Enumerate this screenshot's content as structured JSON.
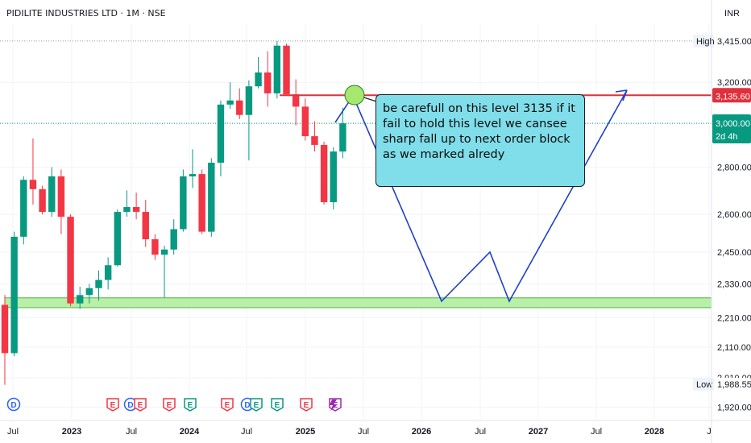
{
  "header": {
    "symbol_title": "PIDILITE INDUSTRIES LTD · 1M · NSE",
    "currency": "INR"
  },
  "annotation": {
    "callout_text": "be carefull on this level 3135 if it fail to hold this level we cansee sharp fall up to next order block as we marked alredy"
  },
  "price_tags": {
    "high_label": "High",
    "high_value": "3,415.00",
    "low_label": "Low",
    "low_value": "1,988.55",
    "level_value": "3,135.60",
    "last_price": "3,000.00",
    "countdown": "2d 4h"
  },
  "events": [
    {
      "x_label_index": 0,
      "letter": "D",
      "kind": "dividend"
    },
    {
      "x_label_index": 2,
      "letter": "E",
      "kind": "earnings"
    },
    {
      "x_label_index": 2,
      "letter": "D",
      "kind": "dividend"
    },
    {
      "x_label_index": 2,
      "letter": "E",
      "kind": "earnings"
    },
    {
      "x_label_index": 2,
      "letter": "E",
      "kind": "earnings"
    },
    {
      "x_label_index": 2,
      "letter": "E",
      "kind": "earnings-green"
    },
    {
      "x_label_index": 4,
      "letter": "E",
      "kind": "earnings"
    },
    {
      "x_label_index": 4,
      "letter": "D",
      "kind": "dividend"
    },
    {
      "x_label_index": 4,
      "letter": "E",
      "kind": "earnings-green"
    },
    {
      "x_label_index": 4,
      "letter": "E",
      "kind": "earnings-green"
    },
    {
      "x_label_index": 6,
      "letter": "E",
      "kind": "earnings"
    },
    {
      "x_label_index": 6,
      "letter": "E",
      "kind": "earnings-purple"
    }
  ],
  "colors": {
    "up": "#089981",
    "down": "#f23645",
    "level_line": "#e0303d",
    "zone_fill": "#b7f0a6",
    "projection": "#1e40c8",
    "grid": "#f0f3fa",
    "dotted": "#9598a1",
    "circle_fill": "#a5e86f"
  },
  "chart_data": {
    "type": "candlestick",
    "interval": "1M",
    "y_scale": "log",
    "ylim": [
      1880,
      3520
    ],
    "y_ticks": [
      3200,
      3000,
      2800,
      2600,
      2450,
      2330,
      2210,
      2110,
      2010,
      1920
    ],
    "y_tick_labels": [
      "3,200.00",
      "3,000.00",
      "2,800.00",
      "2,600.00",
      "2,450.00",
      "2,330.00",
      "2,210.00",
      "2,110.00",
      "2,010.00",
      "1,920.00"
    ],
    "x_tick_labels": [
      "Jul",
      "2023",
      "Jul",
      "2024",
      "Jul",
      "2025",
      "Jul",
      "2026",
      "Jul",
      "2027",
      "Jul",
      "2028",
      "J"
    ],
    "candles": [
      {
        "date": "2022-06",
        "open": 2255,
        "high": 2290,
        "low": 1988.55,
        "close": 2090
      },
      {
        "date": "2022-07",
        "open": 2090,
        "high": 2530,
        "low": 2080,
        "close": 2510
      },
      {
        "date": "2022-08",
        "open": 2510,
        "high": 2760,
        "low": 2480,
        "close": 2745
      },
      {
        "date": "2022-09",
        "open": 2745,
        "high": 2930,
        "low": 2640,
        "close": 2705
      },
      {
        "date": "2022-10",
        "open": 2705,
        "high": 2720,
        "low": 2600,
        "close": 2610
      },
      {
        "date": "2022-11",
        "open": 2610,
        "high": 2800,
        "low": 2590,
        "close": 2760
      },
      {
        "date": "2022-12",
        "open": 2760,
        "high": 2790,
        "low": 2520,
        "close": 2590
      },
      {
        "date": "2023-01",
        "open": 2590,
        "high": 2600,
        "low": 2250,
        "close": 2260
      },
      {
        "date": "2023-02",
        "open": 2260,
        "high": 2320,
        "low": 2240,
        "close": 2290
      },
      {
        "date": "2023-03",
        "open": 2290,
        "high": 2330,
        "low": 2260,
        "close": 2315
      },
      {
        "date": "2023-04",
        "open": 2315,
        "high": 2380,
        "low": 2270,
        "close": 2345
      },
      {
        "date": "2023-05",
        "open": 2345,
        "high": 2430,
        "low": 2310,
        "close": 2400
      },
      {
        "date": "2023-06",
        "open": 2400,
        "high": 2620,
        "low": 2395,
        "close": 2610
      },
      {
        "date": "2023-07",
        "open": 2610,
        "high": 2700,
        "low": 2590,
        "close": 2630
      },
      {
        "date": "2023-08",
        "open": 2630,
        "high": 2690,
        "low": 2580,
        "close": 2610
      },
      {
        "date": "2023-09",
        "open": 2610,
        "high": 2660,
        "low": 2470,
        "close": 2500
      },
      {
        "date": "2023-10",
        "open": 2500,
        "high": 2520,
        "low": 2420,
        "close": 2440
      },
      {
        "date": "2023-11",
        "open": 2440,
        "high": 2475,
        "low": 2280,
        "close": 2460
      },
      {
        "date": "2023-12",
        "open": 2460,
        "high": 2580,
        "low": 2440,
        "close": 2540
      },
      {
        "date": "2024-01",
        "open": 2540,
        "high": 2790,
        "low": 2530,
        "close": 2760
      },
      {
        "date": "2024-02",
        "open": 2760,
        "high": 2880,
        "low": 2710,
        "close": 2770
      },
      {
        "date": "2024-03",
        "open": 2770,
        "high": 2790,
        "low": 2520,
        "close": 2530
      },
      {
        "date": "2024-04",
        "open": 2530,
        "high": 2840,
        "low": 2510,
        "close": 2820
      },
      {
        "date": "2024-05",
        "open": 2820,
        "high": 3110,
        "low": 2760,
        "close": 3090
      },
      {
        "date": "2024-06",
        "open": 3090,
        "high": 3200,
        "low": 3070,
        "close": 3110
      },
      {
        "date": "2024-07",
        "open": 3110,
        "high": 3170,
        "low": 3020,
        "close": 3040
      },
      {
        "date": "2024-08",
        "open": 3040,
        "high": 3210,
        "low": 2830,
        "close": 3180
      },
      {
        "date": "2024-09",
        "open": 3180,
        "high": 3330,
        "low": 3170,
        "close": 3250
      },
      {
        "date": "2024-10",
        "open": 3250,
        "high": 3360,
        "low": 3080,
        "close": 3145
      },
      {
        "date": "2024-11",
        "open": 3145,
        "high": 3415,
        "low": 3120,
        "close": 3390
      },
      {
        "date": "2024-12",
        "open": 3390,
        "high": 3400,
        "low": 3140,
        "close": 3140
      },
      {
        "date": "2025-01",
        "open": 3140,
        "high": 3215,
        "low": 2990,
        "close": 3080
      },
      {
        "date": "2025-02",
        "open": 3080,
        "high": 3120,
        "low": 2920,
        "close": 2940
      },
      {
        "date": "2025-03",
        "open": 2940,
        "high": 3010,
        "low": 2870,
        "close": 2900
      },
      {
        "date": "2025-04",
        "open": 2900,
        "high": 2915,
        "low": 2640,
        "close": 2650
      },
      {
        "date": "2025-05",
        "open": 2650,
        "high": 2890,
        "low": 2620,
        "close": 2870
      },
      {
        "date": "2025-06",
        "open": 2870,
        "high": 3075,
        "low": 2840,
        "close": 3000
      }
    ],
    "horizontal_level": 3135.6,
    "demand_zone": [
      2245,
      2280
    ],
    "projection_path": [
      {
        "date": "2025-06",
        "price": 3000
      },
      {
        "date": "2025-07",
        "price": 3135.6
      },
      {
        "date": "2026-05",
        "price": 2250
      },
      {
        "date": "2026-10",
        "price": 2450
      },
      {
        "date": "2026-12",
        "price": 2250
      },
      {
        "date": "2027-10",
        "price": 3160
      }
    ]
  }
}
